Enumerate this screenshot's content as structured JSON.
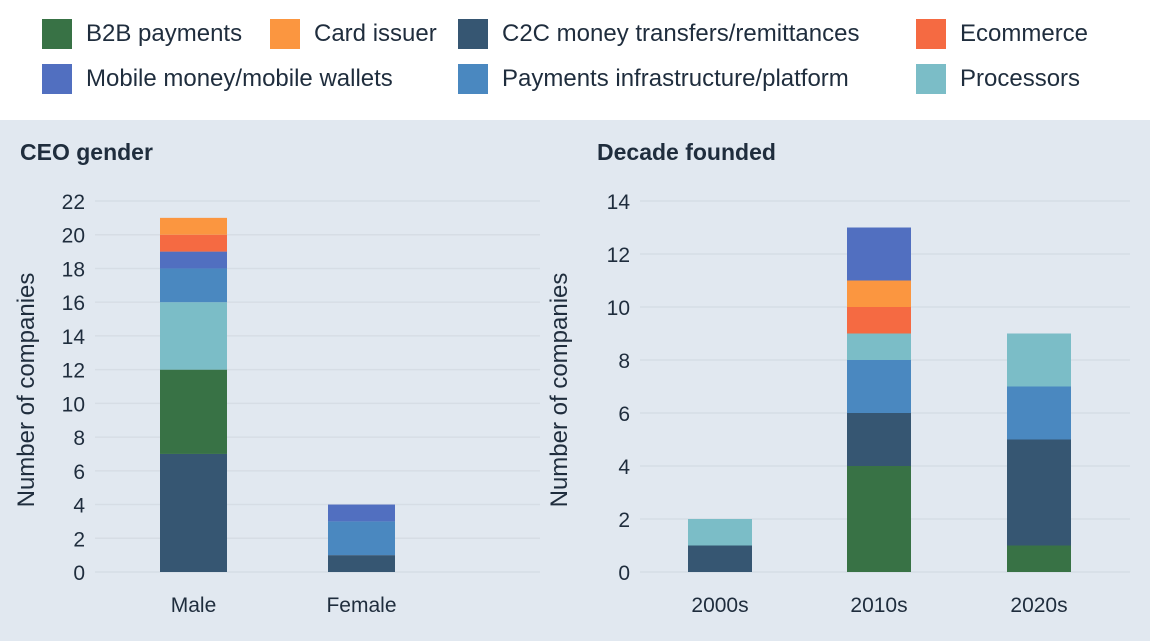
{
  "legend": [
    {
      "label": "B2B payments",
      "color": "#387245"
    },
    {
      "label": "Card issuer",
      "color": "#fb9640"
    },
    {
      "label": "C2C money transfers/remittances",
      "color": "#365672"
    },
    {
      "label": "Ecommerce",
      "color": "#f56a42"
    },
    {
      "label": "Mobile money/mobile wallets",
      "color": "#516fc0"
    },
    {
      "label": "Payments infrastructure/platform",
      "color": "#4a88c0"
    },
    {
      "label": "Processors",
      "color": "#7bbdc7"
    }
  ],
  "chart_data": [
    {
      "type": "bar",
      "stacked": true,
      "title": "CEO gender",
      "xlabel": "",
      "ylabel": "Number of companies",
      "ylim": [
        0,
        22
      ],
      "yticks": [
        0,
        2,
        4,
        6,
        8,
        10,
        12,
        14,
        16,
        18,
        20,
        22
      ],
      "grid": true,
      "categories": [
        "Male",
        "Female"
      ],
      "series": [
        {
          "name": "C2C money transfers/remittances",
          "values": [
            7,
            1
          ]
        },
        {
          "name": "B2B payments",
          "values": [
            5,
            0
          ]
        },
        {
          "name": "Processors",
          "values": [
            4,
            0
          ]
        },
        {
          "name": "Payments infrastructure/platform",
          "values": [
            2,
            2
          ]
        },
        {
          "name": "Mobile money/mobile wallets",
          "values": [
            1,
            1
          ]
        },
        {
          "name": "Ecommerce",
          "values": [
            1,
            0
          ]
        },
        {
          "name": "Card issuer",
          "values": [
            1,
            0
          ]
        }
      ]
    },
    {
      "type": "bar",
      "stacked": true,
      "title": "Decade founded",
      "xlabel": "",
      "ylabel": "Number of companies",
      "ylim": [
        0,
        14
      ],
      "yticks": [
        0,
        2,
        4,
        6,
        8,
        10,
        12,
        14
      ],
      "grid": true,
      "categories": [
        "2000s",
        "2010s",
        "2020s"
      ],
      "series": [
        {
          "name": "B2B payments",
          "values": [
            0,
            4,
            1
          ]
        },
        {
          "name": "C2C money transfers/remittances",
          "values": [
            1,
            2,
            4
          ]
        },
        {
          "name": "Payments infrastructure/platform",
          "values": [
            0,
            2,
            2
          ]
        },
        {
          "name": "Processors",
          "values": [
            1,
            1,
            2
          ]
        },
        {
          "name": "Ecommerce",
          "values": [
            0,
            1,
            0
          ]
        },
        {
          "name": "Card issuer",
          "values": [
            0,
            1,
            0
          ]
        },
        {
          "name": "Mobile money/mobile wallets",
          "values": [
            0,
            2,
            0
          ]
        }
      ]
    }
  ]
}
